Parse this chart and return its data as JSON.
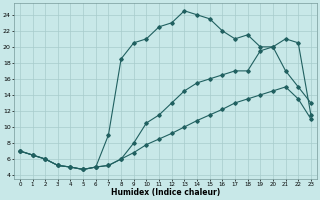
{
  "xlabel": "Humidex (Indice chaleur)",
  "background_color": "#c8e8e8",
  "grid_color": "#a8cccc",
  "line_color": "#206060",
  "xlim": [
    -0.5,
    23.5
  ],
  "ylim": [
    3.5,
    25.5
  ],
  "xticks": [
    0,
    1,
    2,
    3,
    4,
    5,
    6,
    7,
    8,
    9,
    10,
    11,
    12,
    13,
    14,
    15,
    16,
    17,
    18,
    19,
    20,
    21,
    22,
    23
  ],
  "yticks": [
    4,
    6,
    8,
    10,
    12,
    14,
    16,
    18,
    20,
    22,
    24
  ],
  "line1_x": [
    0,
    1,
    2,
    3,
    4,
    5,
    6,
    7,
    8,
    9,
    10,
    11,
    12,
    13,
    14,
    15,
    16,
    17,
    18,
    19,
    20,
    21,
    22,
    23
  ],
  "line1_y": [
    7.0,
    6.5,
    6.0,
    5.2,
    5.0,
    4.7,
    5.0,
    5.2,
    6.0,
    6.8,
    7.8,
    8.5,
    9.2,
    10.0,
    10.8,
    11.5,
    12.2,
    13.0,
    13.5,
    14.0,
    14.5,
    15.0,
    13.5,
    11.0
  ],
  "line2_x": [
    0,
    1,
    2,
    3,
    4,
    5,
    6,
    7,
    8,
    9,
    10,
    11,
    12,
    13,
    14,
    15,
    16,
    17,
    18,
    19,
    20,
    21,
    22,
    23
  ],
  "line2_y": [
    7.0,
    6.5,
    6.0,
    5.2,
    5.0,
    4.7,
    5.0,
    5.2,
    6.0,
    8.0,
    10.5,
    11.5,
    13.0,
    14.5,
    15.5,
    16.0,
    16.5,
    17.0,
    17.0,
    19.5,
    20.0,
    17.0,
    15.0,
    13.0
  ],
  "line3_x": [
    0,
    1,
    2,
    3,
    4,
    5,
    6,
    7,
    8,
    9,
    10,
    11,
    12,
    13,
    14,
    15,
    16,
    17,
    18,
    19,
    20,
    21,
    22,
    23
  ],
  "line3_y": [
    7.0,
    6.5,
    6.0,
    5.2,
    5.0,
    4.7,
    5.0,
    9.0,
    18.5,
    20.5,
    21.0,
    22.5,
    23.0,
    24.5,
    24.0,
    23.5,
    22.0,
    21.0,
    21.5,
    20.0,
    20.0,
    21.0,
    20.5,
    11.5
  ]
}
